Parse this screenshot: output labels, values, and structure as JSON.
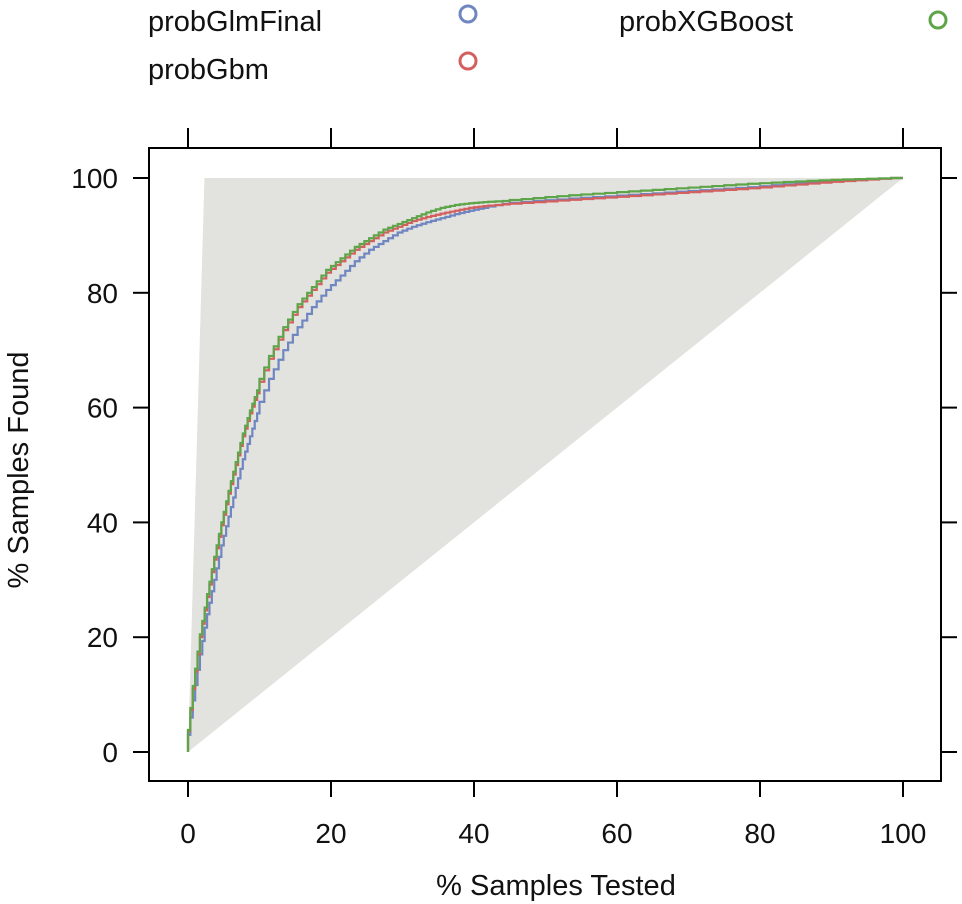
{
  "chart_data": {
    "type": "line",
    "title": "",
    "xlabel": "% Samples Tested",
    "ylabel": "% Samples Found",
    "xlim": [
      -5,
      105
    ],
    "ylim": [
      -5,
      105
    ],
    "xticks": [
      0,
      20,
      40,
      60,
      80,
      100
    ],
    "yticks": [
      0,
      20,
      40,
      60,
      80,
      100
    ],
    "grid": false,
    "legend": {
      "position": "top",
      "entries": [
        {
          "name": "probGlmFinal",
          "color": "#6f86c0"
        },
        {
          "name": "probGbm",
          "color": "#d35f5f"
        },
        {
          "name": "probXGBoost",
          "color": "#5ea54a"
        }
      ]
    },
    "reference_region": {
      "color": "#e2e2de",
      "perfect_model": [
        [
          0,
          0
        ],
        [
          2.3,
          100
        ],
        [
          100,
          100
        ]
      ],
      "random_model": [
        [
          0,
          0
        ],
        [
          100,
          100
        ]
      ]
    },
    "series": [
      {
        "name": "probGlmFinal",
        "color": "#6f86c0",
        "x": [
          0,
          1,
          2,
          3,
          4,
          5,
          6,
          7,
          8,
          9,
          10,
          12,
          14,
          16,
          18,
          20,
          22,
          24,
          26,
          28,
          30,
          32,
          34,
          36,
          38,
          40,
          42,
          45,
          50,
          55,
          60,
          65,
          70,
          75,
          80,
          85,
          90,
          95,
          100
        ],
        "y": [
          0,
          9,
          17,
          24,
          30,
          36,
          41,
          46,
          51,
          55,
          59,
          65,
          70,
          74,
          77.5,
          80.5,
          83,
          85.5,
          87.5,
          89,
          90.5,
          91.5,
          92.3,
          93,
          93.7,
          94.3,
          94.8,
          95.5,
          96,
          96.4,
          96.8,
          97.2,
          97.6,
          98,
          98.4,
          98.9,
          99.3,
          99.7,
          100
        ]
      },
      {
        "name": "probGbm",
        "color": "#d35f5f",
        "x": [
          0,
          1,
          2,
          3,
          4,
          5,
          6,
          7,
          8,
          9,
          10,
          12,
          14,
          16,
          18,
          20,
          22,
          24,
          26,
          28,
          30,
          32,
          34,
          36,
          38,
          40,
          42,
          45,
          50,
          55,
          60,
          65,
          70,
          75,
          80,
          85,
          90,
          95,
          100
        ],
        "y": [
          0,
          11,
          20,
          27,
          33.5,
          39.5,
          45,
          50,
          55,
          59,
          62.5,
          68.5,
          73.5,
          77.5,
          80.5,
          83.5,
          85.5,
          87.5,
          89,
          90.5,
          91.5,
          92.5,
          93.2,
          93.8,
          94.3,
          94.8,
          95.1,
          95.4,
          95.8,
          96.2,
          96.6,
          97,
          97.4,
          97.8,
          98.2,
          98.7,
          99.2,
          99.6,
          100
        ]
      },
      {
        "name": "probXGBoost",
        "color": "#5ea54a",
        "x": [
          0,
          1,
          2,
          3,
          4,
          5,
          6,
          7,
          8,
          9,
          10,
          12,
          14,
          16,
          18,
          20,
          22,
          24,
          26,
          28,
          30,
          32,
          34,
          36,
          38,
          40,
          42,
          45,
          50,
          55,
          60,
          65,
          70,
          75,
          80,
          85,
          90,
          95,
          100
        ],
        "y": [
          0,
          11.5,
          20.5,
          27.5,
          34,
          40,
          45.5,
          50.5,
          55.5,
          59.5,
          63,
          69,
          74,
          78,
          81,
          84,
          86,
          88,
          89.5,
          91,
          92,
          93,
          94,
          94.8,
          95.3,
          95.6,
          95.8,
          96,
          96.5,
          97,
          97.4,
          97.8,
          98.2,
          98.6,
          99,
          99.3,
          99.6,
          99.8,
          100
        ]
      }
    ]
  }
}
